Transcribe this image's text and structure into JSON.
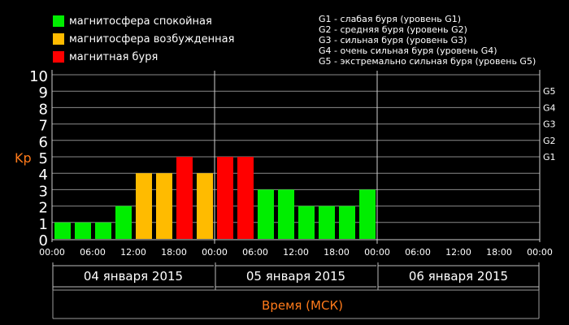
{
  "legend": {
    "items": [
      {
        "label": "магнитосфера спокойная",
        "color": "#00ee00"
      },
      {
        "label": "магнитосфера возбужденная",
        "color": "#ffbb00"
      },
      {
        "label": "магнитная буря",
        "color": "#ff0000"
      }
    ]
  },
  "storm_levels": [
    "G1 - слабая буря (уровень G1)",
    "G2 - средняя буря (уровень G2)",
    "G3 - сильная буря (уровень G3)",
    "G4 - очень сильная буря (уровень G4)",
    "G5 - экстремально сильная буря (уровень G5)"
  ],
  "chart_data": {
    "type": "bar",
    "ylabel": "Kp",
    "xlabel": "Время (МСК)",
    "ylim": [
      0,
      10
    ],
    "yticks": [
      0,
      1,
      2,
      3,
      4,
      5,
      6,
      7,
      8,
      9,
      10
    ],
    "right_ticks": [
      {
        "label": "G1",
        "value": 5
      },
      {
        "label": "G2",
        "value": 6
      },
      {
        "label": "G3",
        "value": 7
      },
      {
        "label": "G4",
        "value": 8
      },
      {
        "label": "G5",
        "value": 9
      }
    ],
    "time_labels": [
      "00:00",
      "06:00",
      "12:00",
      "18:00",
      "00:00",
      "06:00",
      "12:00",
      "18:00",
      "00:00",
      "06:00",
      "12:00",
      "18:00",
      "00:00"
    ],
    "days": [
      "04 января 2015",
      "05 января 2015",
      "06 января 2015"
    ],
    "slots_per_day": 8,
    "values": [
      1,
      1,
      1,
      2,
      4,
      4,
      5,
      4,
      5,
      5,
      3,
      3,
      2,
      2,
      2,
      3
    ],
    "colors": {
      "quiet": "#00ee00",
      "active": "#ffbb00",
      "storm": "#ff0000"
    },
    "grid": true
  }
}
